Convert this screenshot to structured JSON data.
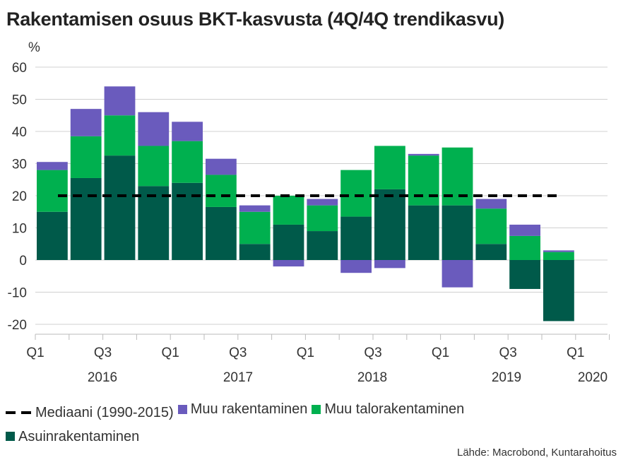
{
  "title": "Rakentamisen osuus BKT-kasvusta (4Q/4Q trendikasvu)",
  "source": "Lähde: Macrobond, Kuntarahoitus",
  "colors": {
    "asuinrakentaminen": "#005a4a",
    "muu_talorakentaminen": "#00b04f",
    "muu_rakentaminen": "#6a5bbd",
    "mediaani": "#000000",
    "grid": "#d0d0d0"
  },
  "chart_data": {
    "type": "bar",
    "stacked": true,
    "ylabel": "%",
    "ylim": [
      -20,
      60
    ],
    "yticks": [
      60,
      50,
      40,
      30,
      20,
      10,
      0,
      -10,
      -20
    ],
    "grid": true,
    "legend_position": "bottom",
    "x_tick_labels": [
      "Q1",
      "Q3",
      "Q1",
      "Q3",
      "Q1",
      "Q3",
      "Q1",
      "Q3",
      "Q1"
    ],
    "x_year_labels": [
      "2016",
      "2017",
      "2018",
      "2019",
      "2020"
    ],
    "categories": [
      "2016Q1",
      "2016Q2",
      "2016Q3",
      "2016Q4",
      "2017Q1",
      "2017Q2",
      "2017Q3",
      "2017Q4",
      "2018Q1",
      "2018Q2",
      "2018Q3",
      "2018Q4",
      "2019Q1",
      "2019Q2",
      "2019Q3",
      "2019Q4"
    ],
    "series": [
      {
        "name": "Asuinrakentaminen",
        "key": "asuinrakentaminen",
        "values": [
          15,
          25.5,
          32.5,
          23,
          24,
          16.5,
          5,
          11,
          9,
          13.5,
          22,
          17,
          17,
          5,
          -9,
          -19
        ]
      },
      {
        "name": "Muu talorakentaminen",
        "key": "muu_talorakentaminen",
        "values": [
          13,
          13,
          12.5,
          12.5,
          13,
          10,
          10,
          9,
          8,
          14.5,
          13.5,
          15.5,
          18,
          11,
          7.5,
          2.5
        ]
      },
      {
        "name": "Muu rakentaminen",
        "key": "muu_rakentaminen",
        "values": [
          2.5,
          8.5,
          9,
          10.5,
          6,
          5,
          2,
          -2,
          2,
          -4,
          -2.5,
          0.5,
          -8.5,
          3,
          3.5,
          0.5
        ]
      }
    ],
    "median_line": {
      "name": "Mediaani (1990-2015)",
      "value": 20
    }
  },
  "legend": [
    {
      "label": "Mediaani (1990-2015)",
      "kind": "dash",
      "key": "mediaani"
    },
    {
      "label": "Muu rakentaminen",
      "kind": "box",
      "key": "muu_rakentaminen"
    },
    {
      "label": "Muu talorakentaminen",
      "kind": "box",
      "key": "muu_talorakentaminen"
    },
    {
      "label": "Asuinrakentaminen",
      "kind": "box",
      "key": "asuinrakentaminen"
    }
  ]
}
